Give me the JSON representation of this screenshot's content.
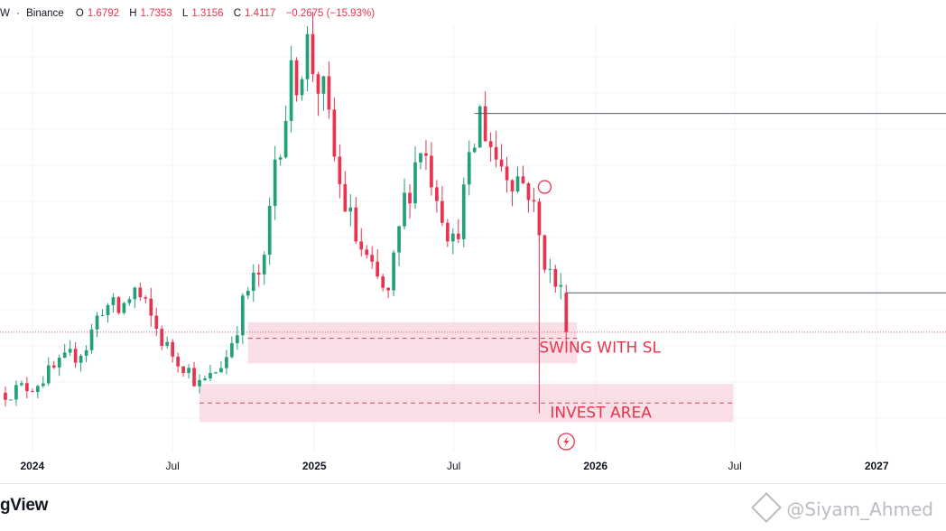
{
  "legend": {
    "symbol_tail": "W",
    "exchange": "Binance",
    "open_label": "O",
    "open": "1.6792",
    "high_label": "H",
    "high": "1.7353",
    "low_label": "L",
    "low": "1.3156",
    "close_label": "C",
    "close": "1.4117",
    "change": "−0.2675 (−15.93%)"
  },
  "brand": "gView",
  "watermark": "@Siyam_Ahmed",
  "colors": {
    "up": "#22a07a",
    "down": "#e8344e",
    "zone": "#f9d4de",
    "zone_text": "#e8344e",
    "line": "#555b66"
  },
  "chart_data": {
    "type": "candlestick",
    "timeframe": "weekly",
    "x_ticks": [
      "2024",
      "Jul",
      "2025",
      "Jul",
      "2026",
      "Jul",
      "2027"
    ],
    "x_tick_dates": [
      "2024-01-01",
      "2024-07-01",
      "2025-01-01",
      "2025-07-01",
      "2026-01-01",
      "2026-07-01",
      "2027-01-01"
    ],
    "x_range": [
      "2023-11-20",
      "2027-04-01"
    ],
    "y_axis_visible": false,
    "y_range": [
      0.6,
      3.5
    ],
    "last_close": 1.4117,
    "last_candle": {
      "open": 1.6792,
      "high": 1.7353,
      "low": 1.3156,
      "close": 1.4117
    },
    "close_path": [
      [
        "2023-11-27",
        1.0
      ],
      [
        "2024-01-01",
        1.05
      ],
      [
        "2024-02-05",
        1.18
      ],
      [
        "2024-03-11",
        1.32
      ],
      [
        "2024-04-01",
        1.6
      ],
      [
        "2024-04-22",
        1.55
      ],
      [
        "2024-05-13",
        1.7
      ],
      [
        "2024-06-03",
        1.5
      ],
      [
        "2024-06-24",
        1.3
      ],
      [
        "2024-07-15",
        1.2
      ],
      [
        "2024-08-05",
        1.05
      ],
      [
        "2024-08-19",
        1.1
      ],
      [
        "2024-09-09",
        1.25
      ],
      [
        "2024-10-07",
        1.7
      ],
      [
        "2024-10-28",
        1.85
      ],
      [
        "2024-11-11",
        2.6
      ],
      [
        "2024-12-02",
        3.1
      ],
      [
        "2024-12-23",
        3.35
      ],
      [
        "2025-01-13",
        3.0
      ],
      [
        "2025-02-03",
        2.4
      ],
      [
        "2025-02-24",
        2.05
      ],
      [
        "2025-03-17",
        1.8
      ],
      [
        "2025-04-07",
        1.65
      ],
      [
        "2025-04-28",
        2.3
      ],
      [
        "2025-05-19",
        2.7
      ],
      [
        "2025-06-09",
        2.4
      ],
      [
        "2025-06-30",
        2.0
      ],
      [
        "2025-07-21",
        2.5
      ],
      [
        "2025-08-04",
        2.9
      ],
      [
        "2025-08-25",
        2.6
      ],
      [
        "2025-09-15",
        2.5
      ],
      [
        "2025-10-06",
        2.4
      ],
      [
        "2025-10-20",
        2.05
      ],
      [
        "2025-11-03",
        1.8
      ],
      [
        "2025-11-17",
        1.68
      ],
      [
        "2025-11-24",
        1.41
      ]
    ],
    "horizontal_lines": [
      {
        "start": "2025-07-28",
        "price": 2.9
      },
      {
        "start": "2025-11-24",
        "price": 1.68
      }
    ],
    "zones": [
      {
        "label": "SWING WITH SL",
        "from": "2024-10-07",
        "to": "2025-12-08",
        "price_top": 1.48,
        "price_bottom": 1.2,
        "mid": 1.37
      },
      {
        "label": "INVEST AREA",
        "from": "2024-08-05",
        "to": "2026-06-29",
        "price_top": 1.06,
        "price_bottom": 0.8,
        "mid": 0.93
      }
    ],
    "annotations": [
      {
        "type": "vertical-line",
        "date": "2025-10-20",
        "from": 2.05,
        "to": 0.86
      },
      {
        "type": "circle-marker",
        "date": "2025-10-27",
        "price": 2.4
      },
      {
        "type": "lightning-icon",
        "date": "2025-11-24"
      }
    ]
  }
}
